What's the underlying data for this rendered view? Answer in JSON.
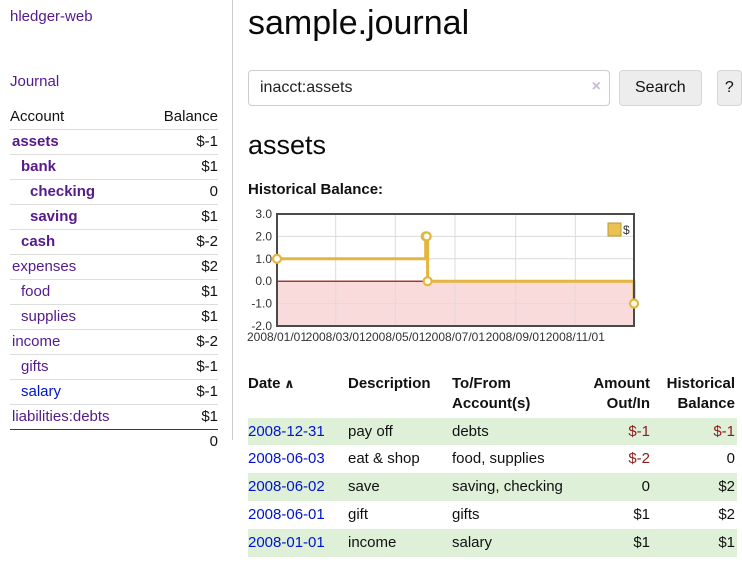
{
  "colors": {
    "link_purple": "#551a8b",
    "link_blue": "#0013cc",
    "negative_strong": "#8b1c1c",
    "negative_soft": "#b27d7d",
    "row_stripe_green": "#dff0d8",
    "series_gold": "#e4b63e",
    "chart_negative_fill": "#f9dbdb",
    "chart_zero_line": "#8b0000"
  },
  "sidebar": {
    "app_title": "hledger-web",
    "journal_label": "Journal",
    "accounts_table": {
      "headers": {
        "account": "Account",
        "balance": "Balance"
      },
      "rows": [
        {
          "name": "assets",
          "depth": 0,
          "bold": true,
          "balance": "$-1",
          "tone": "neg-strong"
        },
        {
          "name": "bank",
          "depth": 1,
          "bold": true,
          "balance": "$1",
          "tone": "pos"
        },
        {
          "name": "checking",
          "depth": 2,
          "bold": true,
          "balance": "0",
          "tone": "pos"
        },
        {
          "name": "saving",
          "depth": 2,
          "bold": true,
          "balance": "$1",
          "tone": "pos"
        },
        {
          "name": "cash",
          "depth": 1,
          "bold": true,
          "balance": "$-2",
          "tone": "neg-strong"
        },
        {
          "name": "expenses",
          "depth": 0,
          "bold": false,
          "balance": "$2",
          "tone": "pos"
        },
        {
          "name": "food",
          "depth": 1,
          "bold": false,
          "balance": "$1",
          "tone": "pos"
        },
        {
          "name": "supplies",
          "depth": 1,
          "bold": false,
          "balance": "$1",
          "tone": "pos"
        },
        {
          "name": "income",
          "depth": 0,
          "bold": false,
          "balance": "$-2",
          "tone": "neg-soft"
        },
        {
          "name": "gifts",
          "depth": 1,
          "bold": false,
          "balance": "$-1",
          "tone": "neg-soft"
        },
        {
          "name": "salary",
          "depth": 1,
          "bold": false,
          "balance": "$-1",
          "tone": "neg-soft",
          "link_color": "blue"
        },
        {
          "name": "liabilities:debts",
          "depth": 0,
          "bold": false,
          "balance": "$1",
          "tone": "pos"
        }
      ],
      "total": "0"
    }
  },
  "header": {
    "title": "sample.journal"
  },
  "search": {
    "query": "inacct:assets",
    "clear_icon": "×",
    "search_label": "Search",
    "help_label": "?"
  },
  "account_page": {
    "heading": "assets",
    "chart_label": "Historical Balance:"
  },
  "chart_data": {
    "type": "line",
    "step": true,
    "title": "Historical Balance",
    "series": [
      {
        "name": "$",
        "points": [
          [
            "2008-01-01",
            1
          ],
          [
            "2008-06-01",
            2
          ],
          [
            "2008-06-02",
            2
          ],
          [
            "2008-06-03",
            0
          ],
          [
            "2008-12-31",
            -1
          ]
        ]
      }
    ],
    "x_domain": [
      "2008-01-01",
      "2008-12-31"
    ],
    "x_ticks": [
      "2008/01/01",
      "2008/03/01",
      "2008/05/01",
      "2008/07/01",
      "2008/09/01",
      "2008/11/01"
    ],
    "y_ticks": [
      3.0,
      2.0,
      1.0,
      0.0,
      -1.0,
      -2.0
    ],
    "ylim": [
      -2,
      3
    ],
    "grid": true,
    "legend": {
      "label": "$",
      "position": "top-right"
    }
  },
  "transactions": {
    "headers": [
      [
        "Date",
        ""
      ],
      [
        "Description",
        ""
      ],
      [
        "To/From",
        "Account(s)"
      ],
      [
        "Amount",
        "Out/In"
      ],
      [
        "Historical",
        "Balance"
      ]
    ],
    "sort": {
      "column": "Date",
      "direction": "asc",
      "icon": "∧"
    },
    "rows": [
      {
        "date": "2008-12-31",
        "description": "pay off",
        "accounts": "debts",
        "amount": "$-1",
        "amount_neg": true,
        "balance": "$-1",
        "balance_neg": true
      },
      {
        "date": "2008-06-03",
        "description": "eat & shop",
        "accounts": "food, supplies",
        "amount": "$-2",
        "amount_neg": true,
        "balance": "0",
        "balance_neg": false
      },
      {
        "date": "2008-06-02",
        "description": "save",
        "accounts": "saving, checking",
        "amount": "0",
        "amount_neg": false,
        "balance": "$2",
        "balance_neg": false
      },
      {
        "date": "2008-06-01",
        "description": "gift",
        "accounts": "gifts",
        "amount": "$1",
        "amount_neg": false,
        "balance": "$2",
        "balance_neg": false
      },
      {
        "date": "2008-01-01",
        "description": "income",
        "accounts": "salary",
        "amount": "$1",
        "amount_neg": false,
        "balance": "$1",
        "balance_neg": false
      }
    ]
  }
}
